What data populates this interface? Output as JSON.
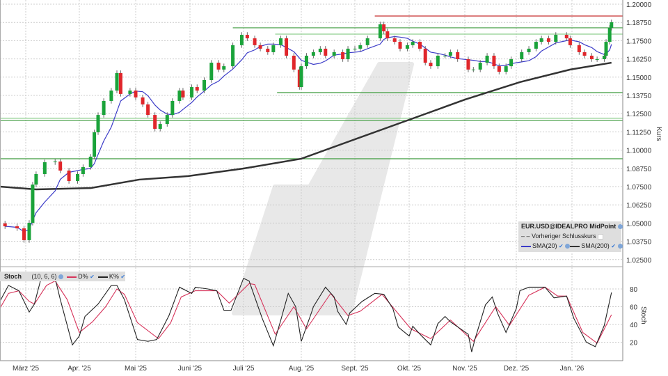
{
  "chart_data": [
    {
      "type": "candlestick",
      "instrument": "EUR.USD@IDEALPRO MidPoint",
      "ylabel": "Kurs",
      "ylim": [
        1.0175,
        1.2025
      ],
      "yticks": [
        "1.20000",
        "1.18750",
        "1.17500",
        "1.16250",
        "1.15000",
        "1.13750",
        "1.12500",
        "1.11250",
        "1.10000",
        "1.08750",
        "1.07500",
        "1.06250",
        "1.05000",
        "1.03750",
        "1.02500"
      ],
      "xticks": [
        {
          "date": "2025-03-01",
          "label": "März '25"
        },
        {
          "date": "2025-04-01",
          "label": "Apr. '25"
        },
        {
          "date": "2025-05-01",
          "label": "Mai '25"
        },
        {
          "date": "2025-06-01",
          "label": "Juni '25"
        },
        {
          "date": "2025-07-01",
          "label": "Juli '25"
        },
        {
          "date": "2025-08-01",
          "label": "Aug. '25"
        },
        {
          "date": "2025-09-01",
          "label": "Sept. '25"
        },
        {
          "date": "2025-10-01",
          "label": "Okt. '25"
        },
        {
          "date": "2025-11-01",
          "label": "Nov. '25"
        },
        {
          "date": "2025-12-01",
          "label": "Dez. '25"
        },
        {
          "date": "2026-01-01",
          "label": "Jan. '26"
        }
      ],
      "grid": true,
      "colors": {
        "up": "#1aa33a",
        "down": "#e0262b",
        "sma20": "#3b3bc8",
        "sma200": "#333333",
        "level_green": "#3c9a3c",
        "level_red": "#c83232"
      },
      "close": [
        [
          "2025-02-17",
          1.0478
        ],
        [
          "2025-02-24",
          1.0464
        ],
        [
          "2025-02-28",
          1.0383
        ],
        [
          "2025-03-03",
          1.0502
        ],
        [
          "2025-03-05",
          1.0764
        ],
        [
          "2025-03-07",
          1.0836
        ],
        [
          "2025-03-12",
          1.0917
        ],
        [
          "2025-03-18",
          1.0922
        ],
        [
          "2025-03-21",
          1.086
        ],
        [
          "2025-03-26",
          1.0788
        ],
        [
          "2025-03-31",
          1.0836
        ],
        [
          "2025-04-03",
          1.0884
        ],
        [
          "2025-04-07",
          1.0955
        ],
        [
          "2025-04-09",
          1.1122
        ],
        [
          "2025-04-11",
          1.1241
        ],
        [
          "2025-04-14",
          1.1337
        ],
        [
          "2025-04-18",
          1.1408
        ],
        [
          "2025-04-21",
          1.1528
        ],
        [
          "2025-04-23",
          1.1385
        ],
        [
          "2025-04-28",
          1.1408
        ],
        [
          "2025-05-01",
          1.1361
        ],
        [
          "2025-05-05",
          1.1313
        ],
        [
          "2025-05-08",
          1.1241
        ],
        [
          "2025-05-12",
          1.1146
        ],
        [
          "2025-05-15",
          1.1179
        ],
        [
          "2025-05-19",
          1.1241
        ],
        [
          "2025-05-22",
          1.1337
        ],
        [
          "2025-05-26",
          1.1408
        ],
        [
          "2025-05-28",
          1.1361
        ],
        [
          "2025-06-02",
          1.1432
        ],
        [
          "2025-06-05",
          1.1408
        ],
        [
          "2025-06-09",
          1.148
        ],
        [
          "2025-06-13",
          1.1599
        ],
        [
          "2025-06-17",
          1.1552
        ],
        [
          "2025-06-20",
          1.1575
        ],
        [
          "2025-06-25",
          1.1719
        ],
        [
          "2025-06-30",
          1.179
        ],
        [
          "2025-07-03",
          1.1766
        ],
        [
          "2025-07-07",
          1.1719
        ],
        [
          "2025-07-10",
          1.1695
        ],
        [
          "2025-07-14",
          1.1671
        ],
        [
          "2025-07-17",
          1.1719
        ],
        [
          "2025-07-21",
          1.1766
        ],
        [
          "2025-07-24",
          1.1647
        ],
        [
          "2025-07-28",
          1.1552
        ],
        [
          "2025-07-31",
          1.1432
        ],
        [
          "2025-08-01",
          1.1575
        ],
        [
          "2025-08-04",
          1.1647
        ],
        [
          "2025-08-08",
          1.1671
        ],
        [
          "2025-08-12",
          1.1695
        ],
        [
          "2025-08-15",
          1.1647
        ],
        [
          "2025-08-20",
          1.1671
        ],
        [
          "2025-08-25",
          1.1623
        ],
        [
          "2025-08-28",
          1.1695
        ],
        [
          "2025-09-01",
          1.1695
        ],
        [
          "2025-09-04",
          1.1719
        ],
        [
          "2025-09-08",
          1.1766
        ],
        [
          "2025-09-15",
          1.1862
        ],
        [
          "2025-09-17",
          1.1814
        ],
        [
          "2025-09-19",
          1.1766
        ],
        [
          "2025-09-23",
          1.1742
        ],
        [
          "2025-09-26",
          1.1695
        ],
        [
          "2025-09-30",
          1.1719
        ],
        [
          "2025-10-03",
          1.1742
        ],
        [
          "2025-10-07",
          1.1695
        ],
        [
          "2025-10-10",
          1.1599
        ],
        [
          "2025-10-13",
          1.1575
        ],
        [
          "2025-10-17",
          1.1647
        ],
        [
          "2025-10-21",
          1.1647
        ],
        [
          "2025-10-24",
          1.1671
        ],
        [
          "2025-10-28",
          1.1623
        ],
        [
          "2025-11-03",
          1.1552
        ],
        [
          "2025-11-06",
          1.1552
        ],
        [
          "2025-11-10",
          1.1599
        ],
        [
          "2025-11-14",
          1.1647
        ],
        [
          "2025-11-18",
          1.1575
        ],
        [
          "2025-11-21",
          1.1537
        ],
        [
          "2025-11-25",
          1.1575
        ],
        [
          "2025-11-28",
          1.1623
        ],
        [
          "2025-12-04",
          1.1671
        ],
        [
          "2025-12-08",
          1.1695
        ],
        [
          "2025-12-12",
          1.1742
        ],
        [
          "2025-12-15",
          1.1766
        ],
        [
          "2025-12-19",
          1.1742
        ],
        [
          "2025-12-23",
          1.179
        ],
        [
          "2025-12-29",
          1.1766
        ],
        [
          "2025-12-31",
          1.1719
        ],
        [
          "2026-01-05",
          1.1671
        ],
        [
          "2026-01-08",
          1.1647
        ],
        [
          "2026-01-12",
          1.1623
        ],
        [
          "2026-01-15",
          1.1623
        ],
        [
          "2026-01-19",
          1.1647
        ],
        [
          "2026-01-20",
          1.1742
        ],
        [
          "2026-01-22",
          1.1838
        ],
        [
          "2026-01-23",
          1.1876
        ]
      ],
      "sma200": [
        [
          "2025-02-14",
          1.075
        ],
        [
          "2025-03-07",
          1.0731
        ],
        [
          "2025-04-07",
          1.074
        ],
        [
          "2025-05-03",
          1.0798
        ],
        [
          "2025-05-31",
          1.0822
        ],
        [
          "2025-07-01",
          1.0874
        ],
        [
          "2025-08-01",
          1.0941
        ],
        [
          "2025-09-01",
          1.1074
        ],
        [
          "2025-10-01",
          1.1208
        ],
        [
          "2025-11-01",
          1.1346
        ],
        [
          "2025-12-03",
          1.1466
        ],
        [
          "2025-12-31",
          1.1552
        ],
        [
          "2026-01-23",
          1.1599
        ]
      ],
      "levels": [
        {
          "price": 1.1919,
          "color": "#c83232",
          "from": "2025-09-12"
        },
        {
          "price": 1.1838,
          "color": "#3c9a3c",
          "from": "2025-06-25"
        },
        {
          "price": 1.1795,
          "color": "#8fcf8f",
          "from": "2025-07-18"
        },
        {
          "price": 1.1394,
          "color": "#3c9a3c",
          "from": "2025-07-19"
        },
        {
          "price": 1.1218,
          "color": "#8fcf8f",
          "from": "2025-02-14"
        },
        {
          "price": 1.1203,
          "color": "#3c9a3c",
          "from": "2025-02-14"
        },
        {
          "price": 1.0941,
          "color": "#3c9a3c",
          "from": "2025-02-14"
        }
      ],
      "legend": {
        "title": "EUR.USD@IDEALPRO MidPoint",
        "prev_close": "Vorheriger Schlusskurs",
        "sma20": "SMA(20)",
        "sma200": "SMA(200)"
      }
    },
    {
      "type": "line",
      "title": "Stoch",
      "params": "(10, 6, 6)",
      "ylabel": "Stoch",
      "ylim": [
        0,
        100
      ],
      "yticks": [
        "80",
        "60",
        "40",
        "20"
      ],
      "series": [
        {
          "name": "D%",
          "color": "#d6335a",
          "points": [
            [
              "2025-02-14",
              58
            ],
            [
              "2025-02-19",
              75
            ],
            [
              "2025-02-25",
              78
            ],
            [
              "2025-03-03",
              66
            ],
            [
              "2025-03-06",
              63
            ],
            [
              "2025-03-13",
              84
            ],
            [
              "2025-03-18",
              89
            ],
            [
              "2025-03-25",
              68
            ],
            [
              "2025-04-01",
              31
            ],
            [
              "2025-04-08",
              43
            ],
            [
              "2025-04-15",
              60
            ],
            [
              "2025-04-21",
              80
            ],
            [
              "2025-04-25",
              74
            ],
            [
              "2025-05-02",
              42
            ],
            [
              "2025-05-14",
              24
            ],
            [
              "2025-05-21",
              42
            ],
            [
              "2025-05-27",
              71
            ],
            [
              "2025-06-04",
              78
            ],
            [
              "2025-06-16",
              78
            ],
            [
              "2025-06-23",
              64
            ],
            [
              "2025-07-04",
              86
            ],
            [
              "2025-07-07",
              85
            ],
            [
              "2025-07-18",
              29
            ],
            [
              "2025-07-28",
              60
            ],
            [
              "2025-08-04",
              35
            ],
            [
              "2025-08-18",
              75
            ],
            [
              "2025-08-28",
              50
            ],
            [
              "2025-09-04",
              55
            ],
            [
              "2025-09-16",
              74
            ],
            [
              "2025-10-02",
              35
            ],
            [
              "2025-10-13",
              24
            ],
            [
              "2025-10-24",
              45
            ],
            [
              "2025-11-06",
              21
            ],
            [
              "2025-11-19",
              60
            ],
            [
              "2025-11-27",
              39
            ],
            [
              "2025-12-08",
              73
            ],
            [
              "2025-12-17",
              82
            ],
            [
              "2025-12-24",
              72
            ],
            [
              "2025-12-29",
              72
            ],
            [
              "2026-01-07",
              31
            ],
            [
              "2026-01-15",
              19
            ],
            [
              "2026-01-23",
              51
            ]
          ]
        },
        {
          "name": "K%",
          "color": "#222222",
          "points": [
            [
              "2025-02-14",
              66
            ],
            [
              "2025-02-19",
              84
            ],
            [
              "2025-02-25",
              78
            ],
            [
              "2025-03-03",
              54
            ],
            [
              "2025-03-06",
              63
            ],
            [
              "2025-03-10",
              93
            ],
            [
              "2025-03-18",
              92
            ],
            [
              "2025-03-21",
              68
            ],
            [
              "2025-03-28",
              17
            ],
            [
              "2025-04-01",
              27
            ],
            [
              "2025-04-04",
              49
            ],
            [
              "2025-04-11",
              63
            ],
            [
              "2025-04-18",
              84
            ],
            [
              "2025-04-21",
              84
            ],
            [
              "2025-04-25",
              68
            ],
            [
              "2025-05-02",
              23
            ],
            [
              "2025-05-08",
              21
            ],
            [
              "2025-05-13",
              23
            ],
            [
              "2025-05-20",
              50
            ],
            [
              "2025-05-26",
              82
            ],
            [
              "2025-06-02",
              75
            ],
            [
              "2025-06-04",
              82
            ],
            [
              "2025-06-11",
              80
            ],
            [
              "2025-06-16",
              78
            ],
            [
              "2025-06-20",
              56
            ],
            [
              "2025-06-24",
              56
            ],
            [
              "2025-07-01",
              92
            ],
            [
              "2025-07-04",
              89
            ],
            [
              "2025-07-11",
              47
            ],
            [
              "2025-07-17",
              16
            ],
            [
              "2025-07-21",
              45
            ],
            [
              "2025-07-25",
              75
            ],
            [
              "2025-07-29",
              60
            ],
            [
              "2025-08-01",
              21
            ],
            [
              "2025-08-07",
              54
            ],
            [
              "2025-08-08",
              60
            ],
            [
              "2025-08-15",
              82
            ],
            [
              "2025-08-20",
              71
            ],
            [
              "2025-08-22",
              55
            ],
            [
              "2025-08-27",
              40
            ],
            [
              "2025-08-29",
              53
            ],
            [
              "2025-09-05",
              66
            ],
            [
              "2025-09-12",
              75
            ],
            [
              "2025-09-17",
              74
            ],
            [
              "2025-09-22",
              58
            ],
            [
              "2025-09-25",
              37
            ],
            [
              "2025-10-01",
              27
            ],
            [
              "2025-10-03",
              38
            ],
            [
              "2025-10-08",
              27
            ],
            [
              "2025-10-13",
              17
            ],
            [
              "2025-10-17",
              41
            ],
            [
              "2025-10-21",
              49
            ],
            [
              "2025-10-24",
              43
            ],
            [
              "2025-11-03",
              29
            ],
            [
              "2025-11-05",
              9
            ],
            [
              "2025-11-07",
              24
            ],
            [
              "2025-11-13",
              62
            ],
            [
              "2025-11-17",
              71
            ],
            [
              "2025-11-20",
              53
            ],
            [
              "2025-11-25",
              31
            ],
            [
              "2025-12-01",
              58
            ],
            [
              "2025-12-03",
              78
            ],
            [
              "2025-12-08",
              82
            ],
            [
              "2025-12-12",
              82
            ],
            [
              "2025-12-17",
              82
            ],
            [
              "2025-12-22",
              70
            ],
            [
              "2025-12-29",
              72
            ],
            [
              "2026-01-02",
              47
            ],
            [
              "2026-01-09",
              20
            ],
            [
              "2026-01-14",
              15
            ],
            [
              "2026-01-19",
              39
            ],
            [
              "2026-01-23",
              76
            ]
          ]
        }
      ]
    }
  ]
}
